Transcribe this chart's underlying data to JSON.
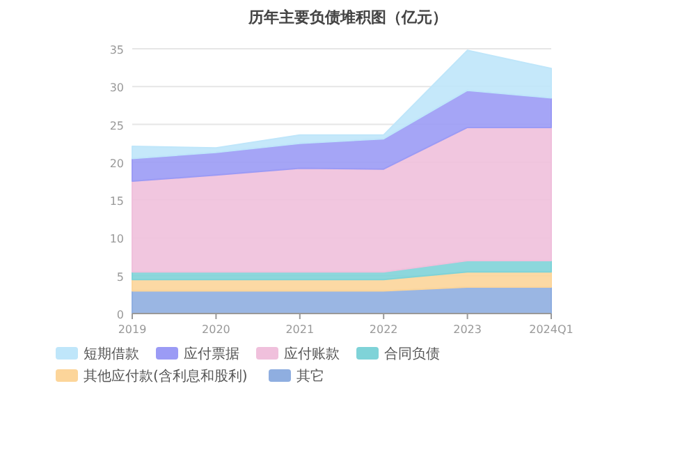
{
  "chart_data": {
    "type": "area",
    "title": "历年主要负债堆积图（亿元）",
    "stacked": true,
    "categories": [
      "2019",
      "2020",
      "2021",
      "2022",
      "2023",
      "2024Q1"
    ],
    "ylim": [
      0,
      35
    ],
    "yticks": [
      0,
      5,
      10,
      15,
      20,
      25,
      30,
      35
    ],
    "grid": "y",
    "legend": "bottom",
    "series": [
      {
        "name": "其它",
        "color": "#8faee0",
        "values": [
          3,
          3,
          3,
          3,
          3.5,
          3.5
        ]
      },
      {
        "name": "其他应付款(含利息和股利)",
        "color": "#fcd59a",
        "values": [
          1.5,
          1.5,
          1.5,
          1.5,
          2,
          2
        ]
      },
      {
        "name": "合同负债",
        "color": "#7fd3d8",
        "values": [
          1,
          1,
          1,
          1,
          1.5,
          1.5
        ]
      },
      {
        "name": "应付账款",
        "color": "#f0c0dc",
        "values": [
          12,
          12.8,
          13.7,
          13.6,
          17.6,
          17.6
        ]
      },
      {
        "name": "应付票据",
        "color": "#9b9bf5",
        "values": [
          3,
          3,
          3.3,
          4,
          4.9,
          3.9
        ]
      },
      {
        "name": "短期借款",
        "color": "#bfe6fa",
        "values": [
          1.6,
          0.6,
          1.1,
          0.5,
          5.3,
          3.9
        ]
      }
    ]
  }
}
